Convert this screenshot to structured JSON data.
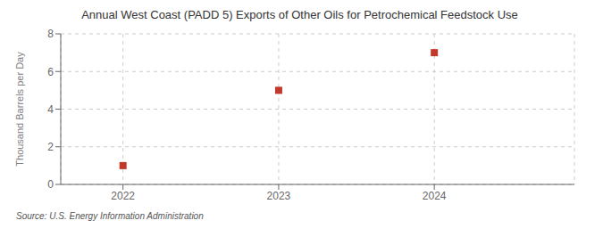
{
  "chart_data": {
    "type": "scatter",
    "title": "Annual West Coast (PADD 5) Exports of Other Oils for Petrochemical Feedstock Use",
    "ylabel": "Thousand Barrels per Day",
    "annotations": [
      "Source: U.S. Energy Information Administration"
    ],
    "x": [
      2022,
      2023,
      2024
    ],
    "values": [
      1,
      5,
      7
    ],
    "xlim": [
      2021.6,
      2024.9
    ],
    "xticks": [
      2022,
      2023,
      2024
    ],
    "ylim": [
      0,
      8
    ],
    "yticks": [
      0,
      2,
      4,
      6,
      8
    ],
    "color": "#c0392b",
    "marker": "square",
    "grid": true
  }
}
